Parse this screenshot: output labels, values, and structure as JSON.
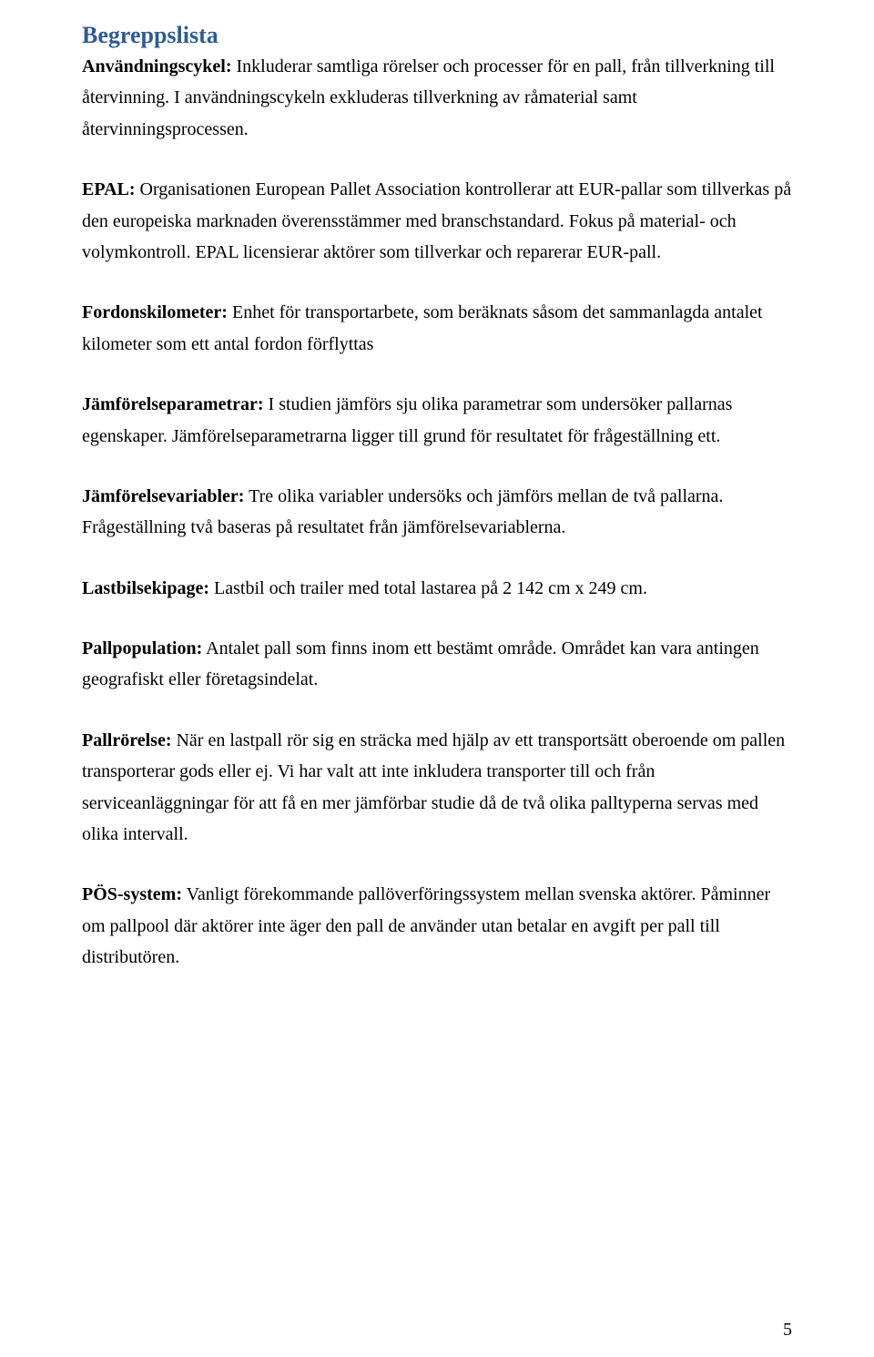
{
  "title": "Begreppslista",
  "entries": [
    {
      "term": "Användningscykel:",
      "text": " Inkluderar samtliga rörelser och processer för en pall, från tillverkning till återvinning. I användningscykeln exkluderas tillverkning av råmaterial samt återvinningsprocessen."
    },
    {
      "term": "EPAL:",
      "text": " Organisationen European Pallet Association kontrollerar att EUR-pallar som tillverkas på den europeiska marknaden överensstämmer med branschstandard. Fokus på material- och volymkontroll. EPAL licensierar aktörer som tillverkar och reparerar EUR-pall."
    },
    {
      "term": "Fordonskilometer:",
      "text": " Enhet för transportarbete, som beräknats såsom det sammanlagda antalet kilometer som ett antal fordon förflyttas"
    },
    {
      "term": "Jämförelseparametrar:",
      "text": " I studien jämförs sju olika parametrar som undersöker pallarnas egenskaper. Jämförelseparametrarna ligger till grund för resultatet för frågeställning ett."
    },
    {
      "term": "Jämförelsevariabler:",
      "text": " Tre olika variabler undersöks och jämförs mellan de två pallarna. Frågeställning två baseras på resultatet från jämförelsevariablerna."
    },
    {
      "term": "Lastbilsekipage:",
      "text": " Lastbil och trailer med total lastarea på 2 142 cm x 249 cm."
    },
    {
      "term": "Pallpopulation:",
      "text": " Antalet pall som finns inom ett bestämt område. Området kan vara antingen geografiskt eller företagsindelat."
    },
    {
      "term": "Pallrörelse:",
      "text": " När en lastpall rör sig en sträcka med hjälp av ett transportsätt oberoende om pallen transporterar gods eller ej. Vi har valt att inte inkludera transporter till och från serviceanläggningar för att få en mer jämförbar studie då de två olika palltyperna servas med olika intervall."
    },
    {
      "term": "PÖS-system:",
      "text": " Vanligt förekommande pallöverföringssystem mellan svenska aktörer. Påminner om pallpool där aktörer inte äger den pall de använder utan betalar en avgift per pall till distributören."
    }
  ],
  "pageNumber": "5"
}
